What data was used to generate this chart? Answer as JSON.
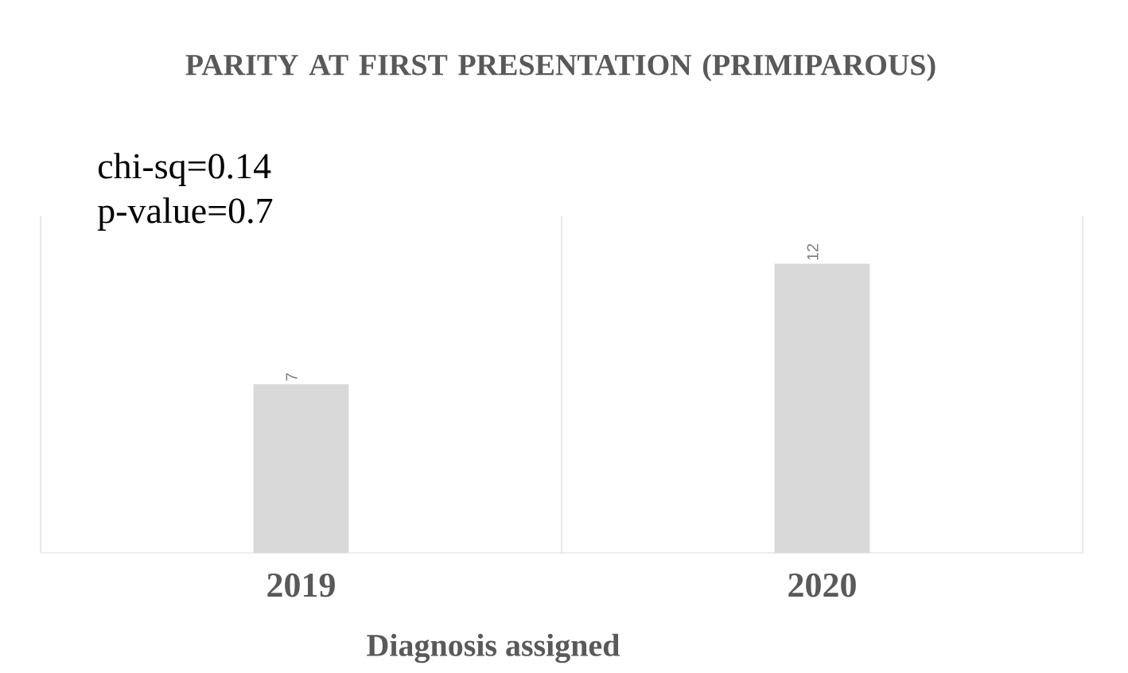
{
  "chart_data": {
    "type": "bar",
    "title": "PARITY AT FIRST PRESENTATION (PRIMIPAROUS)",
    "xlabel": "Diagnosis assigned",
    "categories": [
      "2019",
      "2020"
    ],
    "values": [
      7,
      12
    ],
    "color": "#d9d9d9",
    "ylim": [
      0,
      14
    ],
    "data_labels": true,
    "grid": "x",
    "annotations": [
      "chi-sq=0.14",
      "p-value=0.7"
    ]
  }
}
